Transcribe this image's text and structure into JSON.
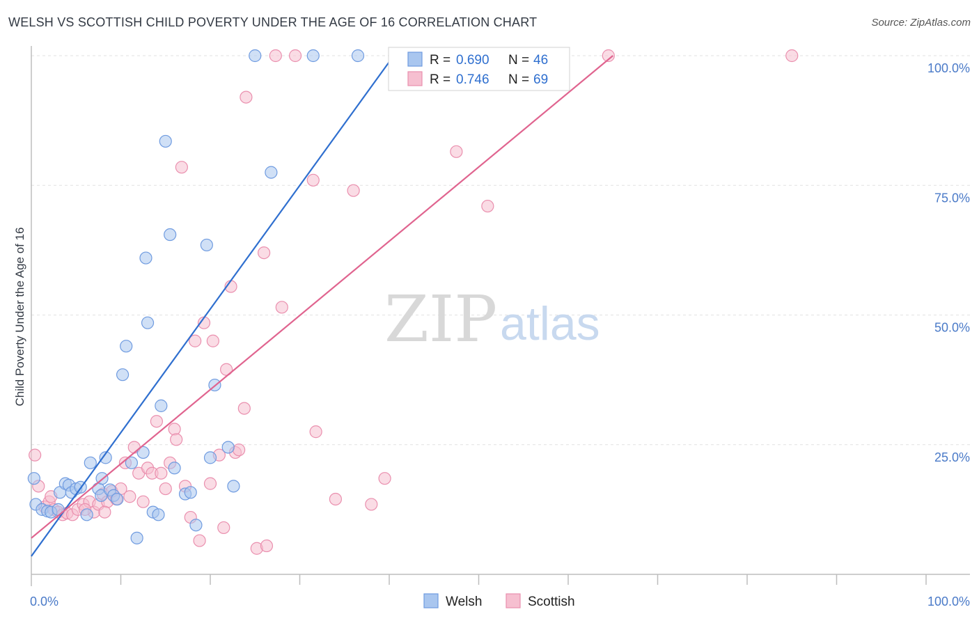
{
  "title": "WELSH VS SCOTTISH CHILD POVERTY UNDER THE AGE OF 16 CORRELATION CHART",
  "source": "Source: ZipAtlas.com",
  "watermark": {
    "zip": "ZIP",
    "atlas": "atlas"
  },
  "colors": {
    "welsh_fill": "#a9c6ef",
    "welsh_stroke": "#6f9be0",
    "welsh_line": "#2f6fcf",
    "scottish_fill": "#f6bfd0",
    "scottish_stroke": "#ea8fae",
    "scottish_line": "#e0648f",
    "tick_text": "#4a7ac8",
    "grid": "#e2e2e2"
  },
  "legend": {
    "welsh": {
      "r_label": "R =",
      "r_value": "0.690",
      "n_label": "N =",
      "n_value": "46"
    },
    "scottish": {
      "r_label": "R =",
      "r_value": "0.746",
      "n_label": "N =",
      "n_value": "69"
    }
  },
  "chart_data": {
    "type": "scatter",
    "title": "WELSH VS SCOTTISH CHILD POVERTY UNDER THE AGE OF 16 CORRELATION CHART",
    "xlabel": "",
    "ylabel": "Child Poverty Under the Age of 16",
    "xlim": [
      0,
      100
    ],
    "ylim": [
      0,
      100
    ],
    "x_tick_labels": [
      "0.0%",
      "100.0%"
    ],
    "y_tick_labels": [
      "25.0%",
      "50.0%",
      "75.0%",
      "100.0%"
    ],
    "y_ticks": [
      25,
      50,
      75,
      100
    ],
    "grid": true,
    "legend_position": "top-center",
    "series": [
      {
        "name": "Welsh",
        "r": 0.69,
        "n": 46,
        "trend": {
          "x0": 0,
          "y0": 3.5,
          "x1": 40.5,
          "y1": 100
        },
        "points": [
          [
            0.3,
            18.5
          ],
          [
            0.5,
            13.5
          ],
          [
            1.2,
            12.5
          ],
          [
            1.8,
            12.2
          ],
          [
            2.2,
            12.0
          ],
          [
            3.0,
            12.5
          ],
          [
            3.2,
            15.8
          ],
          [
            3.8,
            17.5
          ],
          [
            4.2,
            17.2
          ],
          [
            4.5,
            15.8
          ],
          [
            5.0,
            16.5
          ],
          [
            5.5,
            16.8
          ],
          [
            6.2,
            11.5
          ],
          [
            6.6,
            21.5
          ],
          [
            7.5,
            16.5
          ],
          [
            7.8,
            15.2
          ],
          [
            7.9,
            18.5
          ],
          [
            8.3,
            22.5
          ],
          [
            8.8,
            16.3
          ],
          [
            9.2,
            15.2
          ],
          [
            9.6,
            14.5
          ],
          [
            10.2,
            38.5
          ],
          [
            10.6,
            44.0
          ],
          [
            11.2,
            21.5
          ],
          [
            11.8,
            7.0
          ],
          [
            12.5,
            23.5
          ],
          [
            12.8,
            61.0
          ],
          [
            13.0,
            48.5
          ],
          [
            13.6,
            12.0
          ],
          [
            14.2,
            11.5
          ],
          [
            14.5,
            32.5
          ],
          [
            15.0,
            83.5
          ],
          [
            15.5,
            65.5
          ],
          [
            16.0,
            20.5
          ],
          [
            17.2,
            15.5
          ],
          [
            17.8,
            15.8
          ],
          [
            18.4,
            9.5
          ],
          [
            19.6,
            63.5
          ],
          [
            20.0,
            22.5
          ],
          [
            20.5,
            36.5
          ],
          [
            22.0,
            24.5
          ],
          [
            22.6,
            17.0
          ],
          [
            25.0,
            100.0
          ],
          [
            26.8,
            77.5
          ],
          [
            31.5,
            100.0
          ],
          [
            36.5,
            100.0
          ]
        ]
      },
      {
        "name": "Scottish",
        "r": 0.746,
        "n": 69,
        "trend": {
          "x0": 0,
          "y0": 7.0,
          "x1": 65.0,
          "y1": 100
        },
        "points": [
          [
            0.4,
            23.0
          ],
          [
            0.8,
            17.0
          ],
          [
            1.5,
            13.0
          ],
          [
            2.0,
            14.0
          ],
          [
            2.5,
            12.5
          ],
          [
            3.0,
            12.0
          ],
          [
            3.5,
            11.5
          ],
          [
            4.0,
            11.8
          ],
          [
            4.6,
            11.5
          ],
          [
            5.2,
            12.5
          ],
          [
            5.8,
            13.5
          ],
          [
            6.5,
            14.0
          ],
          [
            7.0,
            12.0
          ],
          [
            7.5,
            13.5
          ],
          [
            8.0,
            15.5
          ],
          [
            8.5,
            14.0
          ],
          [
            9.0,
            16.0
          ],
          [
            9.5,
            14.5
          ],
          [
            10.0,
            16.5
          ],
          [
            10.5,
            21.5
          ],
          [
            11.0,
            15.0
          ],
          [
            11.5,
            24.5
          ],
          [
            12.0,
            19.5
          ],
          [
            12.5,
            14.0
          ],
          [
            13.0,
            20.5
          ],
          [
            13.5,
            19.5
          ],
          [
            14.0,
            29.5
          ],
          [
            14.5,
            19.5
          ],
          [
            15.0,
            16.5
          ],
          [
            15.5,
            21.5
          ],
          [
            16.0,
            28.0
          ],
          [
            16.2,
            26.0
          ],
          [
            16.8,
            78.5
          ],
          [
            17.2,
            17.0
          ],
          [
            17.8,
            11.0
          ],
          [
            18.3,
            45.0
          ],
          [
            18.8,
            6.5
          ],
          [
            19.3,
            48.5
          ],
          [
            20.0,
            17.5
          ],
          [
            20.3,
            45.0
          ],
          [
            21.0,
            23.0
          ],
          [
            21.5,
            9.0
          ],
          [
            21.8,
            39.5
          ],
          [
            22.3,
            55.5
          ],
          [
            22.8,
            23.5
          ],
          [
            23.2,
            24.0
          ],
          [
            23.8,
            32.0
          ],
          [
            24.0,
            92.0
          ],
          [
            25.2,
            5.0
          ],
          [
            26.0,
            62.0
          ],
          [
            26.3,
            5.5
          ],
          [
            27.3,
            100.0
          ],
          [
            28.0,
            51.5
          ],
          [
            29.5,
            100.0
          ],
          [
            31.5,
            76.0
          ],
          [
            31.8,
            27.5
          ],
          [
            34.0,
            14.5
          ],
          [
            36.0,
            74.0
          ],
          [
            38.0,
            13.5
          ],
          [
            39.5,
            18.5
          ],
          [
            47.5,
            81.5
          ],
          [
            51.0,
            71.0
          ],
          [
            55.0,
            100.0
          ],
          [
            58.0,
            100.0
          ],
          [
            64.5,
            100.0
          ],
          [
            85.0,
            100.0
          ],
          [
            8.2,
            12.0
          ],
          [
            6.0,
            12.5
          ],
          [
            2.2,
            15.0
          ]
        ]
      }
    ]
  }
}
